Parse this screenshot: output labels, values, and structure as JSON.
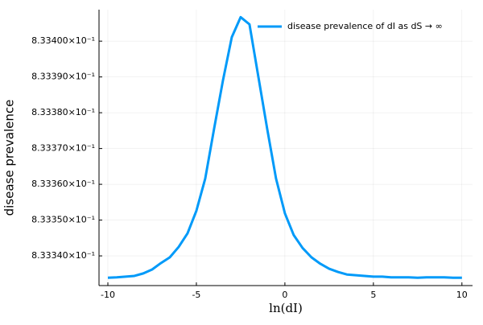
{
  "chart_data": {
    "type": "line",
    "x_label": "ln(dI)",
    "y_label": "disease prevalence",
    "x": [
      -10,
      -9.5,
      -9,
      -8.5,
      -8,
      -7.5,
      -7,
      -6.5,
      -6,
      -5.5,
      -5,
      -4.5,
      -4,
      -3.5,
      -3,
      -2.5,
      -2,
      -1.5,
      -1,
      -0.5,
      0,
      0.5,
      1,
      1.5,
      2,
      2.5,
      3,
      3.5,
      4,
      4.5,
      5,
      5.5,
      6,
      6.5,
      7,
      7.5,
      8,
      8.5,
      9,
      9.5,
      10
    ],
    "series": [
      {
        "name": "disease prevalence of dI as dS → ∞",
        "color": "#009af9",
        "values": [
          0.8333339,
          0.833334,
          0.8333342,
          0.8333344,
          0.8333351,
          0.8333362,
          0.833338,
          0.8333396,
          0.8333425,
          0.8333463,
          0.8333526,
          0.8333616,
          0.8333755,
          0.833389,
          0.8334011,
          0.8334067,
          0.8334047,
          0.8333901,
          0.8333755,
          0.8333616,
          0.8333519,
          0.8333458,
          0.8333422,
          0.8333396,
          0.8333378,
          0.8333364,
          0.8333355,
          0.8333348,
          0.8333346,
          0.8333344,
          0.8333342,
          0.8333342,
          0.833334,
          0.833334,
          0.833334,
          0.8333339,
          0.833334,
          0.833334,
          0.833334,
          0.8333339,
          0.8333339
        ]
      }
    ],
    "xlim": [
      -10.5,
      10.6
    ],
    "ylim": [
      0.8333317,
      0.8334088
    ],
    "xticks": [
      -10,
      -5,
      0,
      5,
      10
    ],
    "yticks": [
      {
        "value": 0.83334,
        "label": "8.33340×10⁻¹"
      },
      {
        "value": 0.83335,
        "label": "8.33350×10⁻¹"
      },
      {
        "value": 0.83336,
        "label": "8.33360×10⁻¹"
      },
      {
        "value": 0.83337,
        "label": "8.33370×10⁻¹"
      },
      {
        "value": 0.83338,
        "label": "8.33380×10⁻¹"
      },
      {
        "value": 0.83339,
        "label": "8.33390×10⁻¹"
      },
      {
        "value": 0.8334,
        "label": "8.33400×10⁻¹"
      }
    ],
    "grid": true,
    "legend": "top-right"
  }
}
